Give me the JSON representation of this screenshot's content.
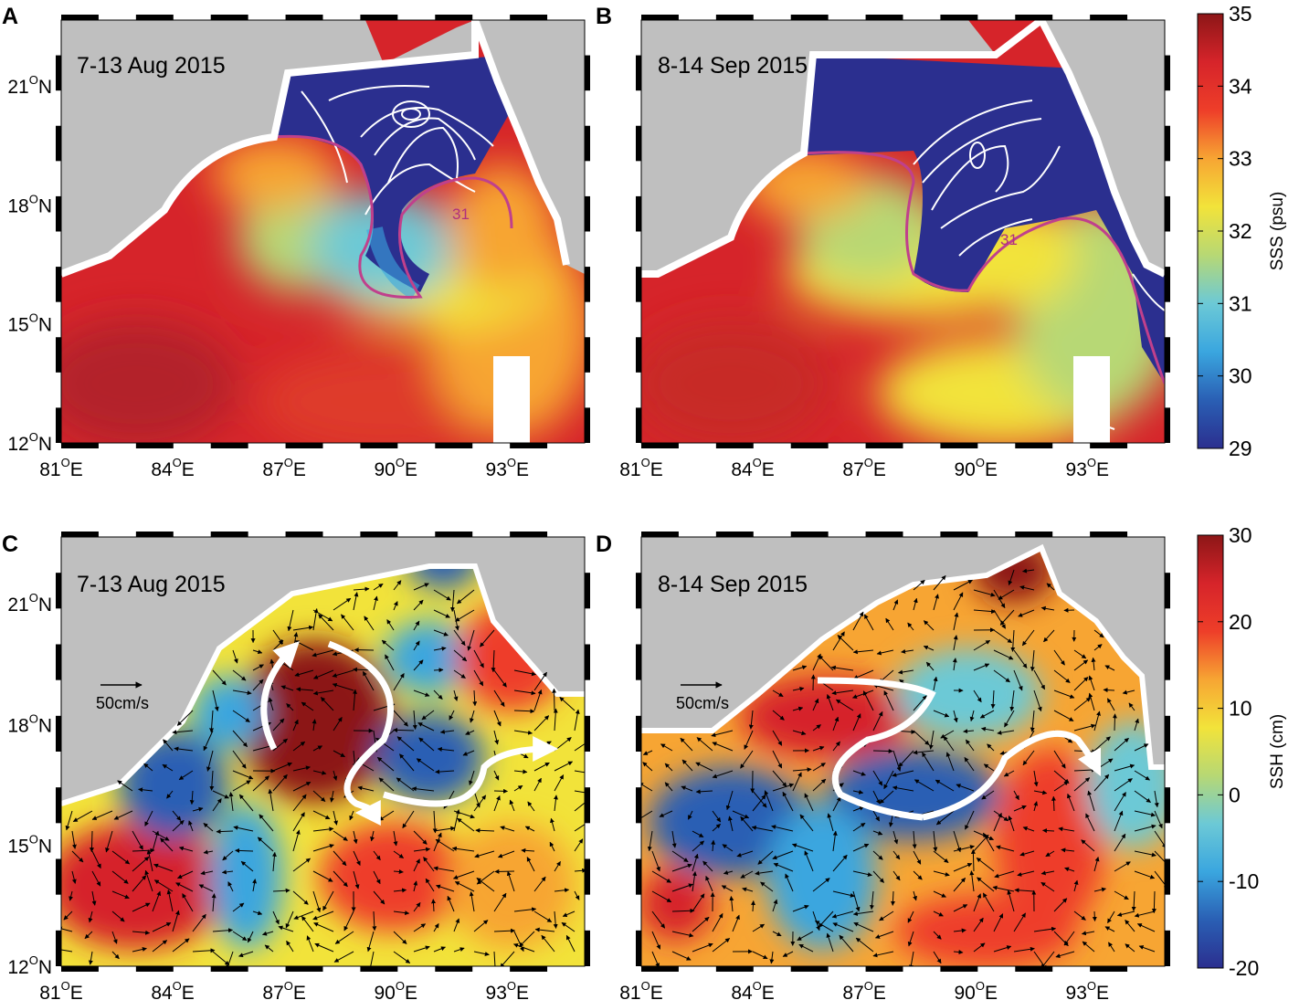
{
  "colors": {
    "land": "#bfbfbf",
    "coast": "#ffffff",
    "contour_white": "#ffffff",
    "contour_31": "#c0408c",
    "arrow_white": "#ffffff",
    "vector": "#000000"
  },
  "axes": {
    "lon_ticks": [
      "81",
      "84",
      "87",
      "90",
      "93"
    ],
    "lat_ticks": [
      "12",
      "15",
      "18",
      "21"
    ],
    "deg": "O",
    "lon_suffix": "E",
    "lat_suffix": "N"
  },
  "panels": [
    {
      "id": "A",
      "label": "A",
      "date": "7-13 Aug 2015",
      "field": "SSS"
    },
    {
      "id": "B",
      "label": "B",
      "date": "8-14 Sep 2015",
      "field": "SSS"
    },
    {
      "id": "C",
      "label": "C",
      "date": "7-13 Aug 2015",
      "field": "SSH",
      "scale_label": "50cm/s"
    },
    {
      "id": "D",
      "label": "D",
      "date": "8-14 Sep 2015",
      "field": "SSH",
      "scale_label": "50cm/s"
    }
  ],
  "contour_label": "31",
  "colorbars": [
    {
      "id": "sss",
      "title": "SSS (psu)",
      "ticks": [
        "35",
        "34",
        "33",
        "32",
        "31",
        "30",
        "29"
      ],
      "min": 29,
      "max": 35
    },
    {
      "id": "ssh",
      "title": "SSH (cm)",
      "ticks": [
        "30",
        "20",
        "10",
        "0",
        "-10",
        "-20"
      ],
      "min": -20,
      "max": 30
    }
  ],
  "colormap": [
    "#2b2f8f",
    "#2a5fb4",
    "#3aa6df",
    "#6cc9d6",
    "#b7d874",
    "#f2e33a",
    "#f7a533",
    "#ee3e29",
    "#d6242a",
    "#8c1617"
  ]
}
